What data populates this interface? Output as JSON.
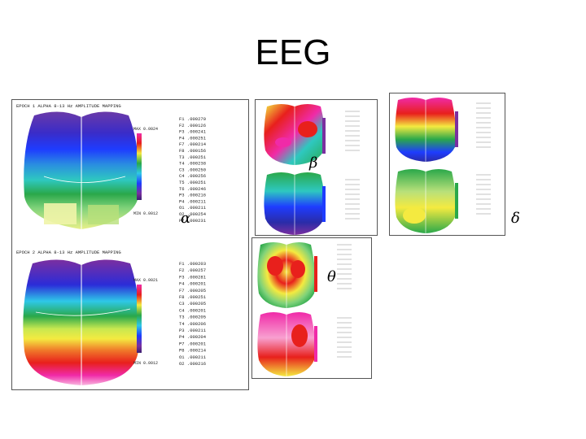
{
  "slide": {
    "title": "EEG",
    "band_labels": {
      "alpha": "α",
      "beta": "β",
      "theta": "θ",
      "delta": "δ"
    }
  },
  "maps": {
    "alpha_top": {
      "header": "EPOCH 1 ALPHA 8-13 Hz AMPLITUDE MAPPING",
      "scale_max": "MAX 0.0024",
      "scale_min": "MIN 0.0012",
      "electrodes": [
        "F1 .000270",
        "F2 .000126",
        "F3 .000241",
        "F4 .000251",
        "F7 .000214",
        "F8 .000156",
        "T3 .000251",
        "T4 .000238",
        "C3 .000250",
        "C4 .000256",
        "T5 .000251",
        "T6 .000246",
        "P3 .000216",
        "P4 .000211",
        "O1 .000211",
        "O2 .000254",
        "P7 .000231"
      ]
    },
    "alpha_bottom": {
      "header": "EPOCH 2 ALPHA 8-13 Hz AMPLITUDE MAPPING",
      "scale_max": "MAX 0.0021",
      "scale_min": "MIN 0.0012",
      "electrodes": [
        "F1 .000203",
        "F2 .000257",
        "F3 .000281",
        "F4 .000201",
        "F7 .000205",
        "F8 .000251",
        "C3 .000205",
        "C4 .000201",
        "T3 .000205",
        "T4 .000206",
        "P3 .000211",
        "P4 .000204",
        "P7 .000201",
        "P8 .000214",
        "O1 .000211",
        "O2 .000216"
      ]
    }
  },
  "colors": {
    "violet": "#7b2fa0",
    "blue": "#1e3cff",
    "cyan": "#2ec8e8",
    "green": "#2aa84a",
    "yellow": "#f4ea40",
    "red": "#e8201c",
    "magenta": "#f02aa8"
  }
}
